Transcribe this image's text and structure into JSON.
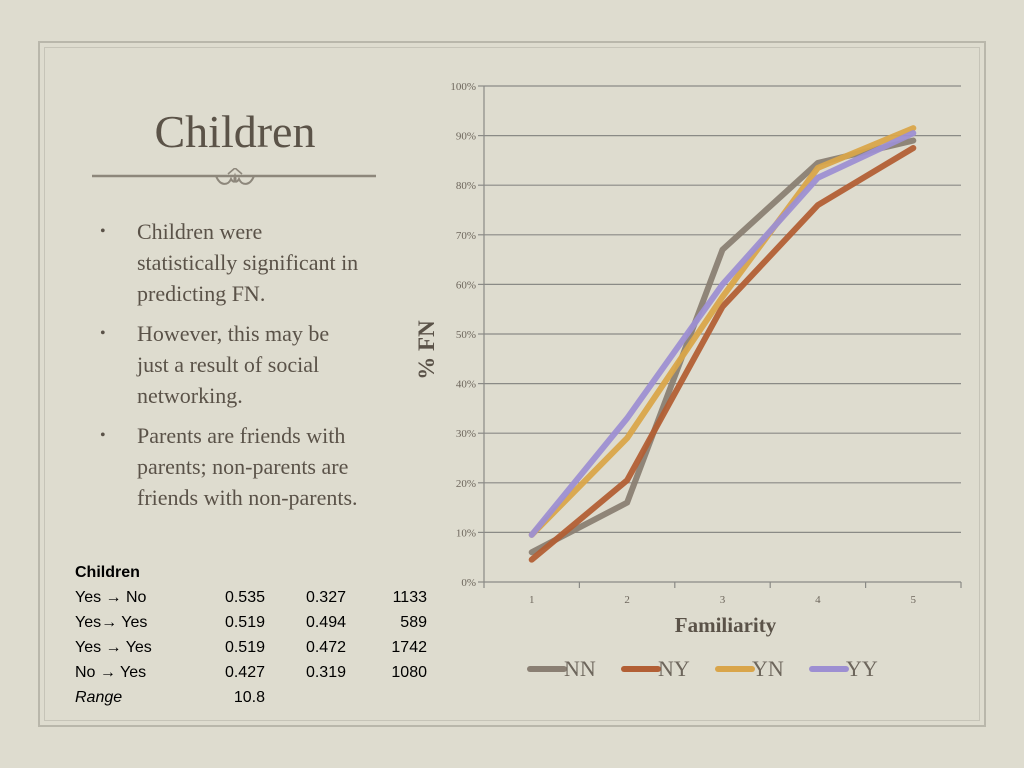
{
  "slide": {
    "title": "Children",
    "bullets": [
      "Children were statistically significant in predicting FN.",
      "However, this may be just a result of social networking.",
      "Parents are friends with parents; non-parents are friends with non-parents."
    ],
    "bullet_glyph": "•"
  },
  "stats_table": {
    "header": "Children",
    "rows": [
      {
        "label": "Yes → No",
        "a": "0.535",
        "b": "0.327",
        "n": "1133",
        "italic": false
      },
      {
        "label": "Yes→ Yes",
        "a": "0.519",
        "b": "0.494",
        "n": "589",
        "italic": false
      },
      {
        "label": "Yes → Yes",
        "a": "0.519",
        "b": "0.472",
        "n": "1742",
        "italic": false
      },
      {
        "label": "No → Yes",
        "a": "0.427",
        "b": "0.319",
        "n": "1080",
        "italic": false
      },
      {
        "label": "Range",
        "a": "10.8",
        "b": "",
        "n": "",
        "italic": true
      }
    ]
  },
  "colors": {
    "background": "#dedccf",
    "text": "#5a5248",
    "grid": "#8a8a86"
  },
  "chart_data": {
    "type": "line",
    "x": [
      1,
      2,
      3,
      4,
      5
    ],
    "xlabel": "Familiarity",
    "ylabel": "% FN",
    "ylim": [
      0,
      1
    ],
    "yticks": [
      0,
      0.1,
      0.2,
      0.3,
      0.4,
      0.5,
      0.6,
      0.7,
      0.8,
      0.9,
      1.0
    ],
    "ytick_labels": [
      "0%",
      "10%",
      "20%",
      "30%",
      "40%",
      "50%",
      "60%",
      "70%",
      "80%",
      "90%",
      "100%"
    ],
    "xtick_labels": [
      "1",
      "2",
      "3",
      "4",
      "5"
    ],
    "grid": true,
    "legend": "bottom",
    "series": [
      {
        "name": "NN",
        "color": "#8a7f73",
        "values": [
          0.06,
          0.16,
          0.67,
          0.845,
          0.89
        ]
      },
      {
        "name": "NY",
        "color": "#b25f35",
        "values": [
          0.045,
          0.205,
          0.555,
          0.76,
          0.875
        ]
      },
      {
        "name": "YN",
        "color": "#d9a54a",
        "values": [
          0.095,
          0.29,
          0.575,
          0.835,
          0.915
        ]
      },
      {
        "name": "YY",
        "color": "#9d8fd2",
        "values": [
          0.095,
          0.33,
          0.6,
          0.815,
          0.905
        ]
      }
    ]
  }
}
